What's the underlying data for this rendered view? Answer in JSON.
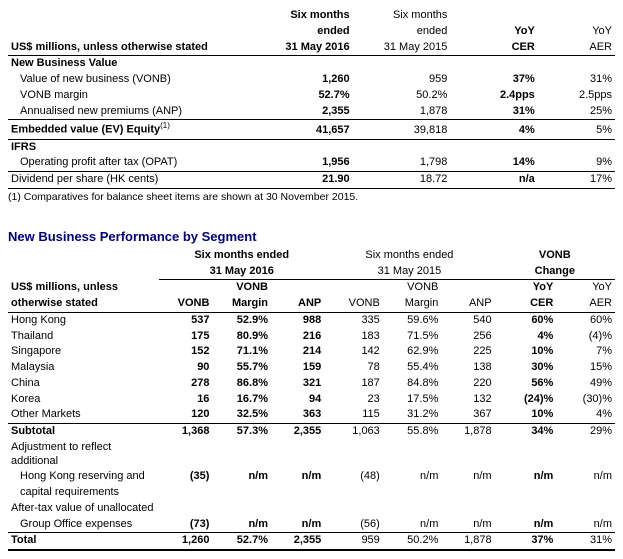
{
  "table1": {
    "headers": {
      "unit": "US$ millions, unless otherwise stated",
      "col1_line1": "Six months",
      "col1_line2": "ended",
      "col1_line3": "31 May 2016",
      "col2_line1": "Six months",
      "col2_line2": "ended",
      "col2_line3": "31 May 2015",
      "col3_line1": "YoY",
      "col3_line2": "CER",
      "col4_line1": "YoY",
      "col4_line2": "AER"
    },
    "sections": {
      "nbv_header": "New Business Value",
      "vonb_label": "Value of new business (VONB)",
      "vonb": {
        "c1": "1,260",
        "c2": "959",
        "c3": "37%",
        "c4": "31%"
      },
      "margin_label": "VONB margin",
      "margin": {
        "c1": "52.7%",
        "c2": "50.2%",
        "c3": "2.4pps",
        "c4": "2.5pps"
      },
      "anp_label": "Annualised new premiums (ANP)",
      "anp": {
        "c1": "2,355",
        "c2": "1,878",
        "c3": "31%",
        "c4": "25%"
      },
      "ev_label": "Embedded value (EV) Equity",
      "ev_sup": "(1)",
      "ev": {
        "c1": "41,657",
        "c2": "39,818",
        "c3": "4%",
        "c4": "5%"
      },
      "ifrs_header": "IFRS",
      "opat_label": "Operating profit after tax (OPAT)",
      "opat": {
        "c1": "1,956",
        "c2": "1,798",
        "c3": "14%",
        "c4": "9%"
      },
      "dps_label": "Dividend per share (HK cents)",
      "dps": {
        "c1": "21.90",
        "c2": "18.72",
        "c3": "n/a",
        "c4": "17%"
      }
    },
    "footnote": "(1) Comparatives for balance sheet items are shown at 30 November 2015."
  },
  "table2": {
    "title": "New Business Performance by Segment",
    "headers": {
      "unit1": "US$ millions, unless",
      "unit2": "otherwise stated",
      "group1_line1": "Six months ended",
      "group1_line2": "31 May 2016",
      "group2_line1": "Six months ended",
      "group2_line2": "31 May 2015",
      "group3_line1": "VONB",
      "group3_line2": "Change",
      "c_vonb": "VONB",
      "c_margin1": "VONB",
      "c_margin2": "Margin",
      "c_anp": "ANP",
      "c_yoy": "YoY",
      "c_cer": "CER",
      "c_aer": "AER"
    },
    "rows": [
      {
        "label": "Hong Kong",
        "c1": "537",
        "c2": "52.9%",
        "c3": "988",
        "c4": "335",
        "c5": "59.6%",
        "c6": "540",
        "c7": "60%",
        "c8": "60%"
      },
      {
        "label": "Thailand",
        "c1": "175",
        "c2": "80.9%",
        "c3": "216",
        "c4": "183",
        "c5": "71.5%",
        "c6": "256",
        "c7": "4%",
        "c8": "(4)%"
      },
      {
        "label": "Singapore",
        "c1": "152",
        "c2": "71.1%",
        "c3": "214",
        "c4": "142",
        "c5": "62.9%",
        "c6": "225",
        "c7": "10%",
        "c8": "7%"
      },
      {
        "label": "Malaysia",
        "c1": "90",
        "c2": "55.7%",
        "c3": "159",
        "c4": "78",
        "c5": "55.4%",
        "c6": "138",
        "c7": "30%",
        "c8": "15%"
      },
      {
        "label": "China",
        "c1": "278",
        "c2": "86.8%",
        "c3": "321",
        "c4": "187",
        "c5": "84.8%",
        "c6": "220",
        "c7": "56%",
        "c8": "49%"
      },
      {
        "label": "Korea",
        "c1": "16",
        "c2": "16.7%",
        "c3": "94",
        "c4": "23",
        "c5": "17.5%",
        "c6": "132",
        "c7": "(24)%",
        "c8": "(30)%"
      },
      {
        "label": "Other Markets",
        "c1": "120",
        "c2": "32.5%",
        "c3": "363",
        "c4": "115",
        "c5": "31.2%",
        "c6": "367",
        "c7": "10%",
        "c8": "4%"
      }
    ],
    "subtotal": {
      "label": "Subtotal",
      "c1": "1,368",
      "c2": "57.3%",
      "c3": "2,355",
      "c4": "1,063",
      "c5": "55.8%",
      "c6": "1,878",
      "c7": "34%",
      "c8": "29%"
    },
    "adj1": {
      "label1": "Adjustment to reflect additional",
      "label2": "Hong Kong reserving and",
      "label3": "capital requirements",
      "c1": "(35)",
      "c2": "n/m",
      "c3": "n/m",
      "c4": "(48)",
      "c5": "n/m",
      "c6": "n/m",
      "c7": "n/m",
      "c8": "n/m"
    },
    "adj2": {
      "label1": "After-tax value of unallocated",
      "label2": "Group Office expenses",
      "c1": "(73)",
      "c2": "n/m",
      "c3": "n/m",
      "c4": "(56)",
      "c5": "n/m",
      "c6": "n/m",
      "c7": "n/m",
      "c8": "n/m"
    },
    "total": {
      "label": "Total",
      "c1": "1,260",
      "c2": "52.7%",
      "c3": "2,355",
      "c4": "959",
      "c5": "50.2%",
      "c6": "1,878",
      "c7": "37%",
      "c8": "31%"
    }
  }
}
